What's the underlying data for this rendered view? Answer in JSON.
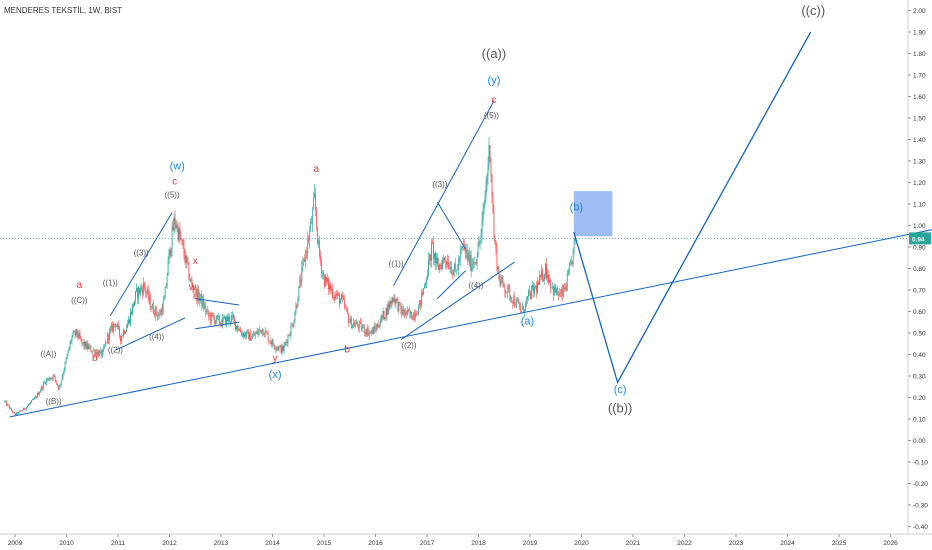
{
  "header": {
    "title": "MENDERES TEKSTİL, 1W, BIST"
  },
  "colors": {
    "up_candle": "#26a69a",
    "down_candle": "#ef5350",
    "trendline": "#1565c0",
    "wave_red": "#e53935",
    "wave_gray": "#555555",
    "wave_blue": "#1e88e5",
    "target_box": "#7fa7ee",
    "price_badge": "#26a69a",
    "axis_text": "#333333"
  },
  "chart_data": {
    "type": "candlestick",
    "symbol": "MENDERES TEKSTİL",
    "interval": "1W",
    "exchange": "BIST",
    "current_price": 0.94,
    "current_price_label": "0.94",
    "ylim": [
      -0.45,
      2.05
    ],
    "xlim": [
      2008.8,
      2027.0
    ],
    "y_ticks": [
      "2.00",
      "1.90",
      "1.80",
      "1.70",
      "1.60",
      "1.50",
      "1.40",
      "1.30",
      "1.20",
      "1.10",
      "1.00",
      "0.90",
      "0.80",
      "0.70",
      "0.60",
      "0.50",
      "0.40",
      "0.30",
      "0.20",
      "0.10",
      "0.00",
      "-0.10",
      "-0.20",
      "-0.30",
      "-0.40"
    ],
    "x_ticks": [
      "2009",
      "2010",
      "2011",
      "2012",
      "2013",
      "2014",
      "2015",
      "2016",
      "2017",
      "2018",
      "2019",
      "2020",
      "2021",
      "2022",
      "2023",
      "2024",
      "2025",
      "2026"
    ],
    "price_path": [
      [
        2008.8,
        0.18
      ],
      [
        2009.0,
        0.12
      ],
      [
        2009.2,
        0.15
      ],
      [
        2009.4,
        0.2
      ],
      [
        2009.6,
        0.28
      ],
      [
        2009.75,
        0.3
      ],
      [
        2009.85,
        0.24
      ],
      [
        2010.0,
        0.38
      ],
      [
        2010.1,
        0.48
      ],
      [
        2010.2,
        0.5
      ],
      [
        2010.3,
        0.45
      ],
      [
        2010.5,
        0.42
      ],
      [
        2010.7,
        0.4
      ],
      [
        2010.8,
        0.48
      ],
      [
        2010.95,
        0.55
      ],
      [
        2011.05,
        0.48
      ],
      [
        2011.2,
        0.55
      ],
      [
        2011.35,
        0.68
      ],
      [
        2011.5,
        0.72
      ],
      [
        2011.65,
        0.62
      ],
      [
        2011.8,
        0.58
      ],
      [
        2011.9,
        0.65
      ],
      [
        2012.0,
        0.88
      ],
      [
        2012.1,
        1.03
      ],
      [
        2012.25,
        0.9
      ],
      [
        2012.35,
        0.8
      ],
      [
        2012.45,
        0.7
      ],
      [
        2012.6,
        0.66
      ],
      [
        2012.75,
        0.58
      ],
      [
        2013.0,
        0.55
      ],
      [
        2013.2,
        0.57
      ],
      [
        2013.4,
        0.5
      ],
      [
        2013.6,
        0.48
      ],
      [
        2013.8,
        0.52
      ],
      [
        2014.0,
        0.45
      ],
      [
        2014.2,
        0.42
      ],
      [
        2014.4,
        0.55
      ],
      [
        2014.55,
        0.75
      ],
      [
        2014.65,
        0.88
      ],
      [
        2014.75,
        1.0
      ],
      [
        2014.82,
        1.12
      ],
      [
        2014.9,
        0.88
      ],
      [
        2015.0,
        0.75
      ],
      [
        2015.2,
        0.68
      ],
      [
        2015.35,
        0.65
      ],
      [
        2015.5,
        0.55
      ],
      [
        2015.7,
        0.53
      ],
      [
        2015.9,
        0.5
      ],
      [
        2016.0,
        0.52
      ],
      [
        2016.2,
        0.6
      ],
      [
        2016.35,
        0.67
      ],
      [
        2016.5,
        0.6
      ],
      [
        2016.7,
        0.58
      ],
      [
        2016.85,
        0.62
      ],
      [
        2016.95,
        0.72
      ],
      [
        2017.1,
        0.9
      ],
      [
        2017.2,
        0.8
      ],
      [
        2017.35,
        0.85
      ],
      [
        2017.55,
        0.78
      ],
      [
        2017.7,
        0.9
      ],
      [
        2017.85,
        0.82
      ],
      [
        2017.95,
        0.85
      ],
      [
        2018.05,
        0.95
      ],
      [
        2018.15,
        1.2
      ],
      [
        2018.22,
        1.38
      ],
      [
        2018.3,
        0.95
      ],
      [
        2018.4,
        0.75
      ],
      [
        2018.55,
        0.7
      ],
      [
        2018.7,
        0.65
      ],
      [
        2018.85,
        0.6
      ],
      [
        2019.0,
        0.68
      ],
      [
        2019.15,
        0.72
      ],
      [
        2019.3,
        0.8
      ],
      [
        2019.45,
        0.7
      ],
      [
        2019.6,
        0.67
      ],
      [
        2019.7,
        0.72
      ],
      [
        2019.8,
        0.82
      ],
      [
        2019.88,
        0.94
      ]
    ],
    "trendlines": [
      {
        "name": "lower-support-1",
        "points": [
          [
            2008.9,
            0.11
          ],
          [
            2027.0,
            0.99
          ]
        ]
      },
      {
        "name": "w-wave-channel-top",
        "points": [
          [
            2010.85,
            0.58
          ],
          [
            2012.05,
            1.06
          ]
        ]
      },
      {
        "name": "w-wave-channel-bottom",
        "points": [
          [
            2010.95,
            0.42
          ],
          [
            2012.3,
            0.57
          ]
        ]
      },
      {
        "name": "x-wave-top",
        "points": [
          [
            2012.5,
            0.66
          ],
          [
            2013.35,
            0.63
          ]
        ]
      },
      {
        "name": "x-wave-bottom",
        "points": [
          [
            2012.5,
            0.52
          ],
          [
            2013.35,
            0.55
          ]
        ]
      },
      {
        "name": "y-wave-channel-top",
        "points": [
          [
            2016.35,
            0.72
          ],
          [
            2018.3,
            1.58
          ]
        ]
      },
      {
        "name": "y-wave-channel-bottom",
        "points": [
          [
            2016.5,
            0.47
          ],
          [
            2018.7,
            0.83
          ]
        ]
      },
      {
        "name": "triangle-top",
        "points": [
          [
            2017.2,
            1.11
          ],
          [
            2017.75,
            0.89
          ]
        ]
      },
      {
        "name": "triangle-bottom",
        "points": [
          [
            2017.2,
            0.66
          ],
          [
            2017.75,
            0.79
          ]
        ]
      }
    ],
    "projection": {
      "name": "projected-path",
      "points": [
        [
          2019.85,
          0.97
        ],
        [
          2020.7,
          0.27
        ],
        [
          2021.8,
          0.75
        ],
        [
          2024.45,
          1.9
        ]
      ]
    },
    "target_box": {
      "x_range": [
        2019.85,
        2020.6
      ],
      "y_range": [
        0.95,
        1.16
      ]
    },
    "annotations": [
      {
        "text": "a",
        "x": 2010.25,
        "y": 0.71,
        "color": "red",
        "size": 10
      },
      {
        "text": "((C))",
        "x": 2010.25,
        "y": 0.64,
        "color": "gray",
        "size": 8
      },
      {
        "text": "((A))",
        "x": 2009.65,
        "y": 0.39,
        "color": "gray",
        "size": 8
      },
      {
        "text": "((B))",
        "x": 2009.75,
        "y": 0.17,
        "color": "gray",
        "size": 8
      },
      {
        "text": "b",
        "x": 2010.55,
        "y": 0.37,
        "color": "red",
        "size": 10
      },
      {
        "text": "((1))",
        "x": 2010.85,
        "y": 0.72,
        "color": "gray",
        "size": 8
      },
      {
        "text": "((2))",
        "x": 2010.95,
        "y": 0.41,
        "color": "gray",
        "size": 8
      },
      {
        "text": "((3))",
        "x": 2011.45,
        "y": 0.86,
        "color": "gray",
        "size": 8
      },
      {
        "text": "((4))",
        "x": 2011.75,
        "y": 0.47,
        "color": "gray",
        "size": 8
      },
      {
        "text": "((5))",
        "x": 2012.05,
        "y": 1.13,
        "color": "gray",
        "size": 8
      },
      {
        "text": "c",
        "x": 2012.1,
        "y": 1.19,
        "color": "red",
        "size": 10
      },
      {
        "text": "(w)",
        "x": 2012.15,
        "y": 1.26,
        "color": "blue",
        "size": 11
      },
      {
        "text": "x",
        "x": 2012.5,
        "y": 0.82,
        "color": "red",
        "size": 10
      },
      {
        "text": "w",
        "x": 2012.45,
        "y": 0.7,
        "color": "red",
        "size": 10
      },
      {
        "text": "y",
        "x": 2014.05,
        "y": 0.37,
        "color": "red",
        "size": 10
      },
      {
        "text": "(x)",
        "x": 2014.05,
        "y": 0.29,
        "color": "blue",
        "size": 11
      },
      {
        "text": "a",
        "x": 2014.85,
        "y": 1.25,
        "color": "red",
        "size": 10
      },
      {
        "text": "b",
        "x": 2015.45,
        "y": 0.41,
        "color": "red",
        "size": 10
      },
      {
        "text": "((1))",
        "x": 2016.4,
        "y": 0.81,
        "color": "gray",
        "size": 8
      },
      {
        "text": "((2))",
        "x": 2016.65,
        "y": 0.43,
        "color": "gray",
        "size": 8
      },
      {
        "text": "((3))",
        "x": 2017.25,
        "y": 1.18,
        "color": "gray",
        "size": 8
      },
      {
        "text": "((4))",
        "x": 2017.95,
        "y": 0.71,
        "color": "gray",
        "size": 8
      },
      {
        "text": "((5))",
        "x": 2018.25,
        "y": 1.5,
        "color": "gray",
        "size": 8
      },
      {
        "text": "c",
        "x": 2018.3,
        "y": 1.57,
        "color": "red",
        "size": 10
      },
      {
        "text": "(y)",
        "x": 2018.3,
        "y": 1.66,
        "color": "blue",
        "size": 11
      },
      {
        "text": "((a))",
        "x": 2018.3,
        "y": 1.78,
        "color": "gray",
        "size": 13
      },
      {
        "text": "(a)",
        "x": 2018.95,
        "y": 0.54,
        "color": "blue",
        "size": 11
      },
      {
        "text": "(b)",
        "x": 2019.9,
        "y": 1.07,
        "color": "blue",
        "size": 11
      },
      {
        "text": "(c)",
        "x": 2020.75,
        "y": 0.22,
        "color": "blue",
        "size": 11
      },
      {
        "text": "((b))",
        "x": 2020.75,
        "y": 0.13,
        "color": "gray",
        "size": 13
      },
      {
        "text": "((c))",
        "x": 2024.5,
        "y": 1.98,
        "color": "gray",
        "size": 13
      }
    ]
  }
}
